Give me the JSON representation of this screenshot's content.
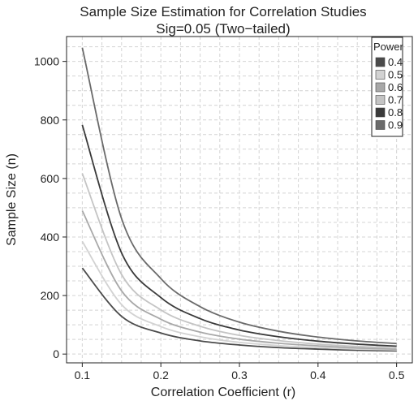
{
  "chart_data": {
    "type": "line",
    "title": "Sample Size Estimation for Correlation Studies",
    "subtitle": "Sig=0.05 (Two−tailed)",
    "xlabel": "Correlation Coefficient (r)",
    "ylabel": "Sample Size (n)",
    "xlim": [
      0.08,
      0.52
    ],
    "ylim": [
      -30,
      1085
    ],
    "x_ticks": [
      0.1,
      0.2,
      0.3,
      0.4,
      0.5
    ],
    "x_tick_labels": [
      "0.1",
      "0.2",
      "0.3",
      "0.4",
      "0.5"
    ],
    "y_ticks": [
      0,
      200,
      400,
      600,
      800,
      1000
    ],
    "y_tick_labels": [
      "0",
      "200",
      "400",
      "600",
      "800",
      "1000"
    ],
    "grid": true,
    "legend": {
      "title": "Power",
      "placement": "top-right"
    },
    "x": [
      0.1,
      0.15,
      0.2,
      0.25,
      0.3,
      0.35,
      0.4,
      0.45,
      0.5
    ],
    "series": [
      {
        "name": "0.4",
        "color": "#4a4a4a",
        "values": [
          294,
          129,
          72,
          45,
          31,
          22,
          17,
          13,
          11
        ]
      },
      {
        "name": "0.5",
        "color": "#d2d2d2",
        "values": [
          385,
          169,
          94,
          59,
          40,
          29,
          22,
          17,
          14
        ]
      },
      {
        "name": "0.6",
        "color": "#a8a8a8",
        "values": [
          490,
          216,
          119,
          75,
          51,
          37,
          28,
          21,
          17
        ]
      },
      {
        "name": "0.7",
        "color": "#c4c4c4",
        "values": [
          617,
          272,
          151,
          95,
          64,
          46,
          34,
          26,
          21
        ]
      },
      {
        "name": "0.8",
        "color": "#3a3a3a",
        "values": [
          783,
          346,
          193,
          121,
          82,
          59,
          44,
          34,
          27
        ]
      },
      {
        "name": "0.9",
        "color": "#6a6a6a",
        "values": [
          1047,
          463,
          258,
          162,
          109,
          78,
          58,
          45,
          36
        ]
      }
    ]
  }
}
